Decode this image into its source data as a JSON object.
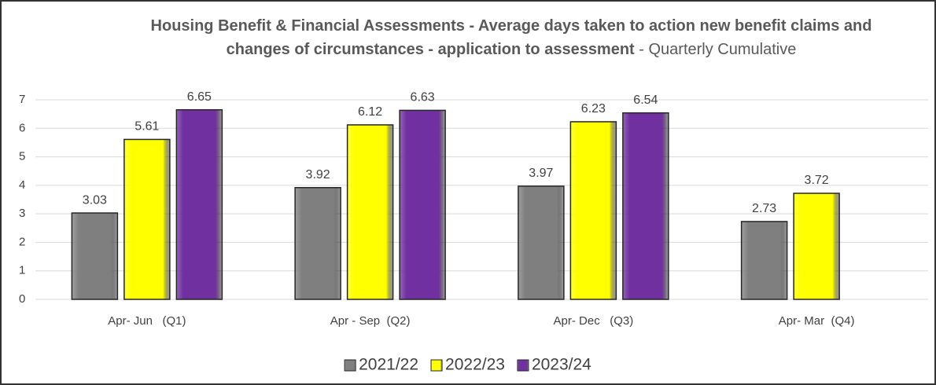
{
  "chart_data": {
    "type": "bar",
    "title": "Housing Benefit & Financial Assessments - Average days taken to action new benefit claims and changes of circumstances - application to assessment",
    "subtitle": "- Quarterly Cumulative",
    "categories": [
      "Apr- Jun   (Q1)",
      "Apr - Sep  (Q2)",
      "Apr- Dec   (Q3)",
      "Apr- Mar  (Q4)"
    ],
    "series": [
      {
        "name": "2021/22",
        "color": "#7f7f7f",
        "values": [
          3.03,
          3.92,
          3.97,
          2.73
        ]
      },
      {
        "name": "2022/23",
        "color": "#ffff00",
        "values": [
          5.61,
          6.12,
          6.23,
          3.72
        ]
      },
      {
        "name": "2023/24",
        "color": "#7030a0",
        "values": [
          6.65,
          6.63,
          6.54,
          null
        ]
      }
    ],
    "ylim": [
      0,
      7
    ],
    "yticks": [
      0,
      1,
      2,
      3,
      4,
      5,
      6,
      7
    ],
    "grid": true,
    "legend": "bottom"
  }
}
